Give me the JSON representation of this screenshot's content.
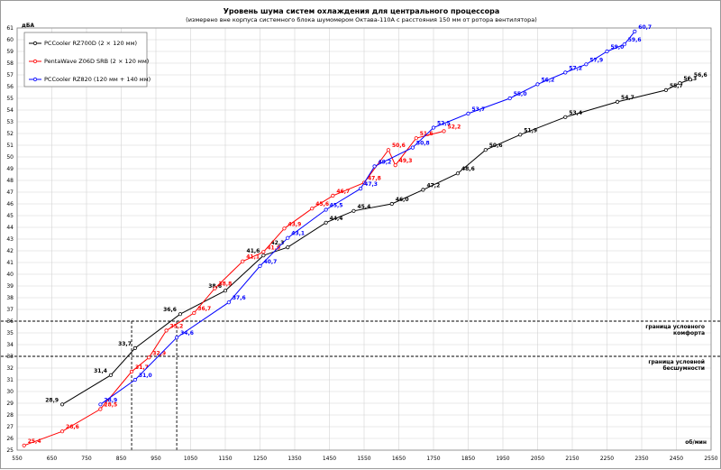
{
  "chart_data": {
    "type": "line",
    "title": "Уровень шума систем охлаждения для центрального процессора",
    "subtitle": "(измерено вне корпуса системного блока шумомером Октава-110А с расстояния 150 мм от ротора вентилятора)",
    "ylabel": "дБА",
    "xlabel": "об/мин",
    "xlim": [
      550,
      2550
    ],
    "ylim": [
      25,
      61
    ],
    "x_ticks": [
      "550",
      "650",
      "750",
      "850",
      "950",
      "1050",
      "1150",
      "1250",
      "1350",
      "1450",
      "1550",
      "1650",
      "1750",
      "1850",
      "1950",
      "2050",
      "2150",
      "2250",
      "2350",
      "2450",
      "2550"
    ],
    "y_ticks": [
      "25",
      "26",
      "27",
      "28",
      "29",
      "30",
      "31",
      "32",
      "33",
      "34",
      "35",
      "36",
      "37",
      "38",
      "39",
      "40",
      "41",
      "42",
      "43",
      "44",
      "45",
      "46",
      "47",
      "48",
      "49",
      "50",
      "51",
      "52",
      "53",
      "54",
      "55",
      "56",
      "57",
      "58",
      "59",
      "60",
      "61"
    ],
    "grid": true,
    "legend_position": "top-left",
    "series": [
      {
        "name": "PCCooler RZ700D (2 × 120 мм)",
        "color": "#000000",
        "points": [
          [
            680,
            28.9,
            "28,9"
          ],
          [
            820,
            31.4,
            "31,4"
          ],
          [
            890,
            33.7,
            "33,7"
          ],
          [
            1020,
            36.6,
            "36,6"
          ],
          [
            1150,
            38.6,
            "38,6"
          ],
          [
            1260,
            41.6,
            "41,6"
          ],
          [
            1330,
            42.3,
            "42,3"
          ],
          [
            1440,
            44.4,
            "44,4"
          ],
          [
            1520,
            45.4,
            "45,4"
          ],
          [
            1630,
            46.0,
            "46,0"
          ],
          [
            1720,
            47.2,
            "47,2"
          ],
          [
            1820,
            48.6,
            "48,6"
          ],
          [
            1900,
            50.6,
            "50,6"
          ],
          [
            2000,
            51.9,
            "51,9"
          ],
          [
            2130,
            53.4,
            "53,4"
          ],
          [
            2280,
            54.7,
            "54,7"
          ],
          [
            2420,
            55.7,
            "55,7"
          ],
          [
            2460,
            56.3,
            "56,3"
          ],
          [
            2490,
            56.6,
            "56,6"
          ]
        ]
      },
      {
        "name": "PentaWave Z06D SRB (2 × 120 мм)",
        "color": "#ff0000",
        "points": [
          [
            570,
            25.4,
            "25,4"
          ],
          [
            680,
            26.6,
            "26,6"
          ],
          [
            790,
            28.5,
            "28,5"
          ],
          [
            880,
            31.7,
            "31,7"
          ],
          [
            930,
            32.9,
            "32,9"
          ],
          [
            980,
            35.2,
            "35,2"
          ],
          [
            1060,
            36.7,
            "36,7"
          ],
          [
            1120,
            38.8,
            "38,8"
          ],
          [
            1200,
            41.1,
            "41,1"
          ],
          [
            1260,
            41.9,
            "41,9"
          ],
          [
            1320,
            43.9,
            "43,9"
          ],
          [
            1400,
            45.6,
            "45,6"
          ],
          [
            1460,
            46.7,
            "46,7"
          ],
          [
            1550,
            47.8,
            "47,8"
          ],
          [
            1620,
            50.6,
            "50,6"
          ],
          [
            1640,
            49.3,
            "49,3"
          ],
          [
            1700,
            51.6,
            "51,6"
          ],
          [
            1780,
            52.2,
            "52,2"
          ]
        ]
      },
      {
        "name": "PCCooler RZ820 (120 мм + 140 мм)",
        "color": "#0000ff",
        "points": [
          [
            790,
            28.9,
            "28,9"
          ],
          [
            890,
            31.0,
            "31,0"
          ],
          [
            1010,
            34.6,
            "34,6"
          ],
          [
            1160,
            37.6,
            "37,6"
          ],
          [
            1250,
            40.7,
            "40,7"
          ],
          [
            1330,
            43.1,
            "43,1"
          ],
          [
            1440,
            45.5,
            "45,5"
          ],
          [
            1540,
            47.3,
            "47,3"
          ],
          [
            1580,
            49.2,
            "49,2"
          ],
          [
            1690,
            50.8,
            "50,8"
          ],
          [
            1750,
            52.5,
            "52,5"
          ],
          [
            1850,
            53.7,
            "53,7"
          ],
          [
            1970,
            55.0,
            "55,0"
          ],
          [
            2050,
            56.2,
            "56,2"
          ],
          [
            2130,
            57.2,
            "57,2"
          ],
          [
            2190,
            57.9,
            "57,9"
          ],
          [
            2250,
            59.0,
            "59,0"
          ],
          [
            2300,
            59.6,
            "59,6"
          ],
          [
            2330,
            60.7,
            "60,7"
          ]
        ]
      }
    ],
    "reference_lines": [
      {
        "y": 36,
        "label": [
          "граница  условного",
          "комфорта"
        ]
      },
      {
        "y": 33,
        "label": [
          "граница  условной",
          "бесшумности"
        ]
      }
    ],
    "drop_lines_x": [
      880,
      1010
    ]
  }
}
